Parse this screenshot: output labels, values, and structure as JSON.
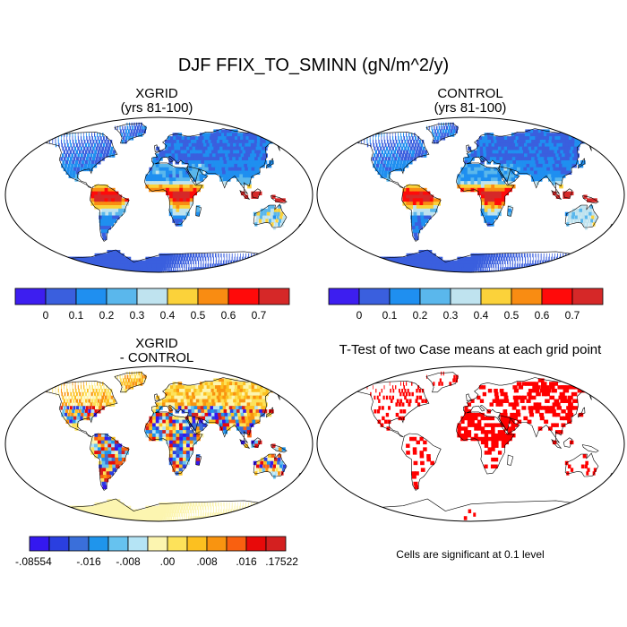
{
  "title": "DJF FFIX_TO_SMINN (gN/m^2/y)",
  "panels": [
    {
      "id": "xgrid",
      "title_line1": "XGRID",
      "title_line2": "(yrs 81-100)"
    },
    {
      "id": "control",
      "title_line1": "CONTROL",
      "title_line2": "(yrs 81-100)"
    },
    {
      "id": "diff",
      "title_line1": "XGRID",
      "title_line2": "- CONTROL"
    },
    {
      "id": "ttest",
      "title_line1": "T-Test of two Case means at each grid point",
      "title_line2": ""
    }
  ],
  "colorbar_abs": {
    "colors": [
      "#3d1ef0",
      "#3a5fde",
      "#1f8ff0",
      "#5ab7ec",
      "#bfe3ef",
      "#fbd23a",
      "#f98c12",
      "#ff0a0a",
      "#d62828"
    ],
    "labels": [
      "0",
      "0.1",
      "0.2",
      "0.3",
      "0.4",
      "0.5",
      "0.6",
      "0.7"
    ]
  },
  "colorbar_diff": {
    "colors": [
      "#3418f0",
      "#2a3fe0",
      "#3a6fda",
      "#1f95ec",
      "#66c2ef",
      "#b5e4f5",
      "#fcf5b0",
      "#fde25a",
      "#fcc020",
      "#f99410",
      "#f96010",
      "#e80a0a",
      "#d42020"
    ],
    "labels": [
      "-.08554",
      "-.016",
      "-.008",
      ".00",
      ".008",
      ".016",
      ".17522"
    ]
  },
  "significance_note": "Cells are significant at 0.1 level",
  "chart_data": {
    "type": "heatmap",
    "title": "DJF FFIX_TO_SMINN (gN/m^2/y)",
    "maps": [
      {
        "title": "XGRID (yrs 81-100)",
        "levels": [
          0,
          0.1,
          0.2,
          0.3,
          0.4,
          0.5,
          0.6,
          0.7
        ]
      },
      {
        "title": "CONTROL (yrs 81-100)",
        "levels": [
          0,
          0.1,
          0.2,
          0.3,
          0.4,
          0.5,
          0.6,
          0.7
        ]
      },
      {
        "title": "XGRID - CONTROL",
        "levels": [
          -0.08554,
          -0.016,
          -0.008,
          0.0,
          0.008,
          0.016,
          0.17522
        ]
      },
      {
        "title": "T-Test of two Case means at each grid point",
        "significance_level": 0.1
      }
    ]
  }
}
